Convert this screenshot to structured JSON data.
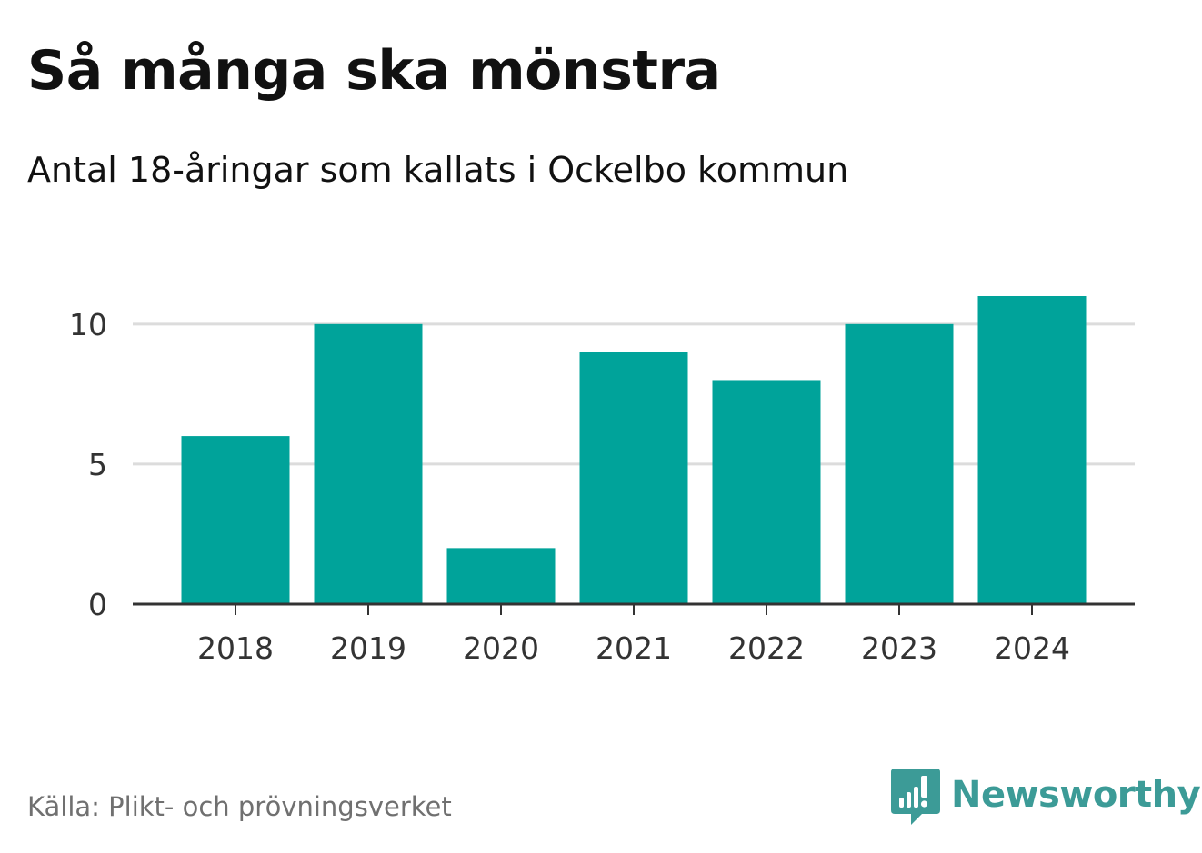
{
  "chart_data": {
    "type": "bar",
    "title": "Så många ska mönstra",
    "subtitle": "Antal 18-åringar som kallats i Ockelbo kommun",
    "categories": [
      "2018",
      "2019",
      "2020",
      "2021",
      "2022",
      "2023",
      "2024"
    ],
    "values": [
      6,
      10,
      2,
      9,
      8,
      10,
      11
    ],
    "xlabel": "",
    "ylabel": "",
    "ylim": [
      0,
      11
    ],
    "yticks": [
      0,
      5,
      10
    ],
    "grid": true,
    "bar_color": "#00a39a",
    "grid_color": "#dcdcdc",
    "axis_color": "#333333"
  },
  "footer": {
    "source": "Källa: Plikt- och prövningsverket",
    "brand": "Newsworthy",
    "brand_color": "#3c9b97",
    "logo_icon": "newsworthy-speech-bubble-bars-icon"
  }
}
